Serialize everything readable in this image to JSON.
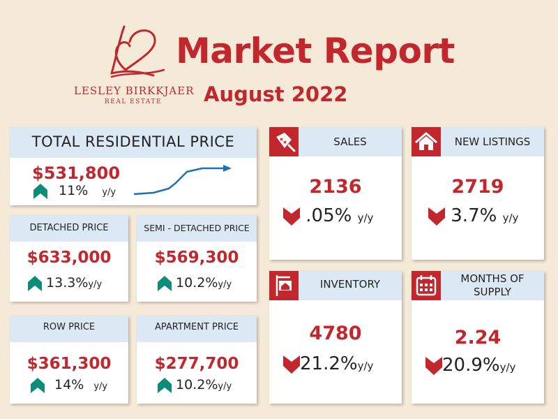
{
  "header": {
    "title": "Market Report",
    "subtitle": "August  2022",
    "brand_name": "LESLEY BIRKKJAER",
    "brand_sub": "REAL ESTATE"
  },
  "colors": {
    "accent": "#c1272d",
    "header_fill": "#dce9f5",
    "up_arrow": "#0e8c7a",
    "trend_line": "#1f6fb5",
    "background": "#f5ead8"
  },
  "total": {
    "label": "TOTAL RESIDENTIAL PRICE",
    "value": "$531,800",
    "change": "11%",
    "unit": "y/y",
    "direction": "up",
    "icon": "trend-line-chart"
  },
  "detached": {
    "label": "DETACHED PRICE",
    "value": "$633,000",
    "change": "13.3%",
    "unit": "y/y",
    "direction": "up"
  },
  "semi": {
    "label": "SEMI - DETACHED PRICE",
    "value": "$569,300",
    "change": "10.2%",
    "unit": "y/y",
    "direction": "up"
  },
  "row": {
    "label": "ROW PRICE",
    "value": "$361,300",
    "change": "14%",
    "unit": "y/y",
    "direction": "up"
  },
  "apartment": {
    "label": "APARTMENT PRICE",
    "value": "$277,700",
    "change": "10.2%",
    "unit": "y/y",
    "direction": "up"
  },
  "sales": {
    "label": "SALES",
    "value": "2136",
    "change": ".05%",
    "unit": "y/y",
    "direction": "down",
    "icon": "sold-tag-icon"
  },
  "new_listings": {
    "label": "NEW LISTINGS",
    "value": "2719",
    "change": "3.7%",
    "unit": "y/y",
    "direction": "down",
    "icon": "house-icon"
  },
  "inventory": {
    "label": "INVENTORY",
    "value": "4780",
    "change": "21.2%",
    "unit": "y/y",
    "direction": "down",
    "icon": "for-sale-sign-icon"
  },
  "months_supply": {
    "label_line1": "MONTHS OF",
    "label_line2": "SUPPLY",
    "value": "2.24",
    "change": "20.9%",
    "unit": "y/y",
    "direction": "down",
    "icon": "calendar-icon"
  }
}
